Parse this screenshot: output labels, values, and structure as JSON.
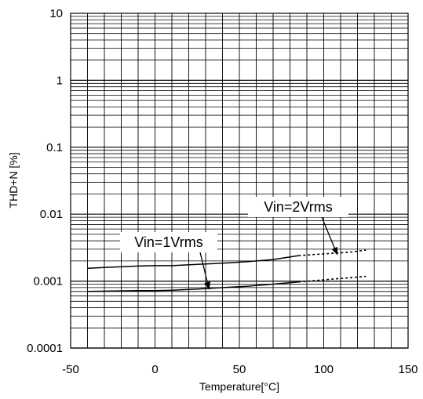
{
  "chart_data": {
    "type": "line",
    "xlabel": "Temperature[°C]",
    "ylabel": "THD+N [%]",
    "xlim": [
      -50,
      150
    ],
    "ylim": [
      0.0001,
      10
    ],
    "yscale": "log",
    "grid": true,
    "x_ticks": [
      "-50",
      "0",
      "50",
      "100",
      "150"
    ],
    "y_ticks": [
      "0.0001",
      "0.001",
      "0.01",
      "0.1",
      "1",
      "10"
    ],
    "series": [
      {
        "name": "Vin=2Vrms",
        "solid": {
          "x": [
            -40,
            -25,
            -10,
            0,
            10,
            25,
            40,
            55,
            70,
            85
          ],
          "y": [
            0.00155,
            0.00162,
            0.00168,
            0.0017,
            0.0017,
            0.00178,
            0.00185,
            0.00195,
            0.0021,
            0.0024
          ]
        },
        "dashed": {
          "x": [
            85,
            95,
            105,
            115,
            125
          ],
          "y": [
            0.0024,
            0.0025,
            0.0026,
            0.0027,
            0.0029
          ]
        }
      },
      {
        "name": "Vin=1Vrms",
        "solid": {
          "x": [
            -40,
            -25,
            -10,
            0,
            10,
            25,
            40,
            55,
            70,
            85
          ],
          "y": [
            0.0007,
            0.00071,
            0.00072,
            0.00072,
            0.00073,
            0.00076,
            0.0008,
            0.00084,
            0.0009,
            0.00097
          ]
        },
        "dashed": {
          "x": [
            85,
            95,
            105,
            115,
            125
          ],
          "y": [
            0.00097,
            0.00102,
            0.00107,
            0.00112,
            0.00118
          ]
        }
      }
    ],
    "annotations": [
      {
        "text": "Vin=2Vrms",
        "target_x": 108,
        "target_y": 0.0025
      },
      {
        "text": "Vin=1Vrms",
        "target_x": 32,
        "target_y": 0.00076
      }
    ]
  }
}
